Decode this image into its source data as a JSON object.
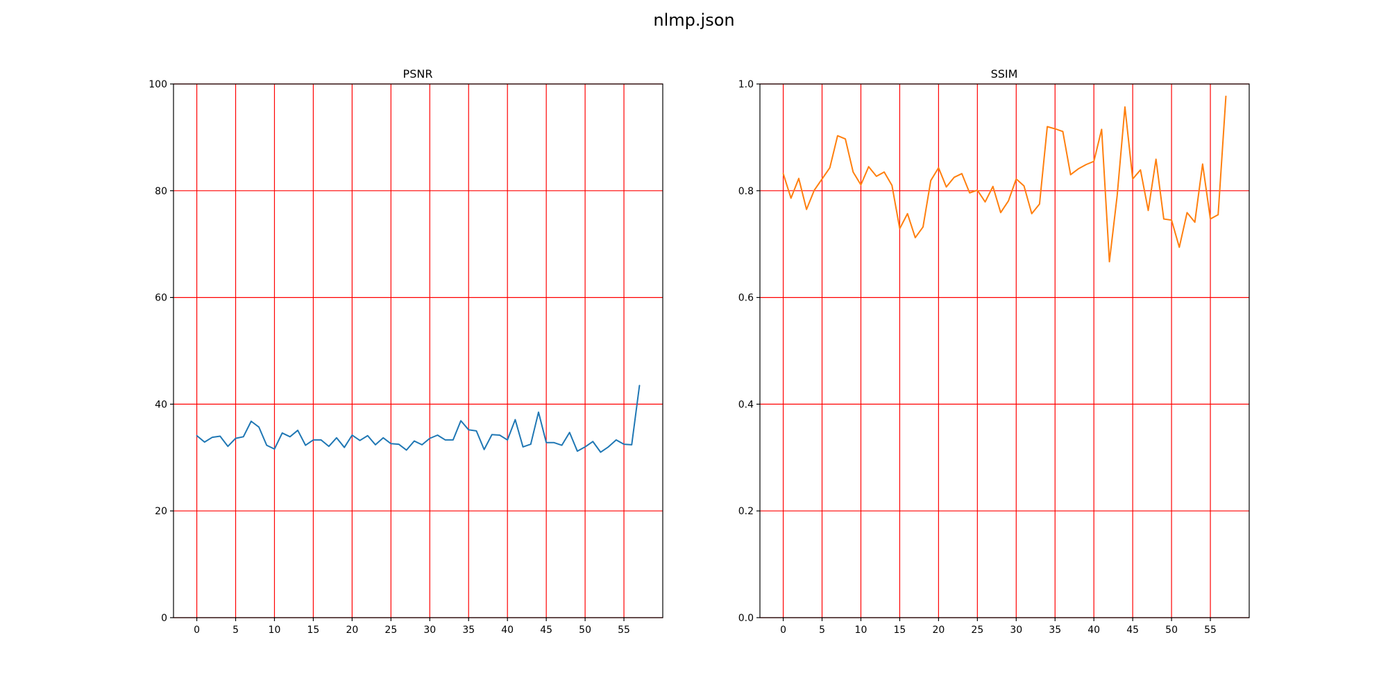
{
  "figure": {
    "title": "nlmp.json"
  },
  "colors": {
    "psnr": "#1f77b4",
    "ssim": "#ff7f0e",
    "grid": "#ff0000"
  },
  "chart_data": [
    {
      "type": "line",
      "title": "PSNR",
      "xlabel": "",
      "ylabel": "",
      "xlim": [
        -3,
        60
      ],
      "ylim": [
        0,
        100
      ],
      "xticks": [
        0,
        5,
        10,
        15,
        20,
        25,
        30,
        35,
        40,
        45,
        50,
        55
      ],
      "yticks": [
        0,
        20,
        40,
        60,
        80,
        100
      ],
      "xtick_labels": [
        "0",
        "5",
        "10",
        "15",
        "20",
        "25",
        "30",
        "35",
        "40",
        "45",
        "50",
        "55"
      ],
      "ytick_labels": [
        "0",
        "20",
        "40",
        "60",
        "80",
        "100"
      ],
      "grid": true,
      "series": [
        {
          "x": [
            0,
            1,
            2,
            3,
            4,
            5,
            6,
            7,
            8,
            9,
            10,
            11,
            12,
            13,
            14,
            15,
            16,
            17,
            18,
            19,
            20,
            21,
            22,
            23,
            24,
            25,
            26,
            27,
            28,
            29,
            30,
            31,
            32,
            33,
            34,
            35,
            36,
            37,
            38,
            39,
            40,
            41,
            42,
            43,
            44,
            45,
            46,
            47,
            48,
            49,
            50,
            51,
            52,
            53,
            54,
            55,
            56,
            57
          ],
          "values": [
            34.1,
            32.9,
            33.8,
            34.0,
            32.1,
            33.6,
            33.9,
            36.8,
            35.7,
            32.3,
            31.6,
            34.6,
            33.9,
            35.1,
            32.3,
            33.3,
            33.3,
            32.1,
            33.7,
            31.9,
            34.2,
            33.2,
            34.1,
            32.4,
            33.7,
            32.6,
            32.5,
            31.4,
            33.1,
            32.4,
            33.6,
            34.2,
            33.3,
            33.3,
            36.9,
            35.2,
            35.0,
            31.5,
            34.3,
            34.2,
            33.3,
            37.1,
            32.0,
            32.5,
            38.5,
            32.8,
            32.8,
            32.3,
            34.7,
            31.2,
            32.0,
            33.0,
            31.0,
            32.0,
            33.3,
            32.5,
            32.4,
            43.5
          ]
        }
      ]
    },
    {
      "type": "line",
      "title": "SSIM",
      "xlabel": "",
      "ylabel": "",
      "xlim": [
        -3,
        60
      ],
      "ylim": [
        0,
        1
      ],
      "xticks": [
        0,
        5,
        10,
        15,
        20,
        25,
        30,
        35,
        40,
        45,
        50,
        55
      ],
      "yticks": [
        0,
        0.2,
        0.4,
        0.6,
        0.8,
        1.0
      ],
      "xtick_labels": [
        "0",
        "5",
        "10",
        "15",
        "20",
        "25",
        "30",
        "35",
        "40",
        "45",
        "50",
        "55"
      ],
      "ytick_labels": [
        "0.0",
        "0.2",
        "0.4",
        "0.6",
        "0.8",
        "1.0"
      ],
      "grid": true,
      "series": [
        {
          "x": [
            0,
            1,
            2,
            3,
            4,
            5,
            6,
            7,
            8,
            9,
            10,
            11,
            12,
            13,
            14,
            15,
            16,
            17,
            18,
            19,
            20,
            21,
            22,
            23,
            24,
            25,
            26,
            27,
            28,
            29,
            30,
            31,
            32,
            33,
            34,
            35,
            36,
            37,
            38,
            39,
            40,
            41,
            42,
            43,
            44,
            45,
            46,
            47,
            48,
            49,
            50,
            51,
            52,
            53,
            54,
            55,
            56,
            57
          ],
          "values": [
            0.832,
            0.786,
            0.823,
            0.765,
            0.801,
            0.822,
            0.843,
            0.903,
            0.897,
            0.835,
            0.811,
            0.845,
            0.827,
            0.835,
            0.81,
            0.729,
            0.757,
            0.712,
            0.732,
            0.819,
            0.843,
            0.807,
            0.825,
            0.832,
            0.796,
            0.801,
            0.779,
            0.808,
            0.759,
            0.781,
            0.822,
            0.809,
            0.757,
            0.775,
            0.92,
            0.916,
            0.911,
            0.83,
            0.841,
            0.849,
            0.855,
            0.915,
            0.667,
            0.791,
            0.957,
            0.822,
            0.839,
            0.763,
            0.859,
            0.747,
            0.745,
            0.694,
            0.759,
            0.741,
            0.85,
            0.747,
            0.755,
            0.977
          ]
        }
      ]
    }
  ]
}
